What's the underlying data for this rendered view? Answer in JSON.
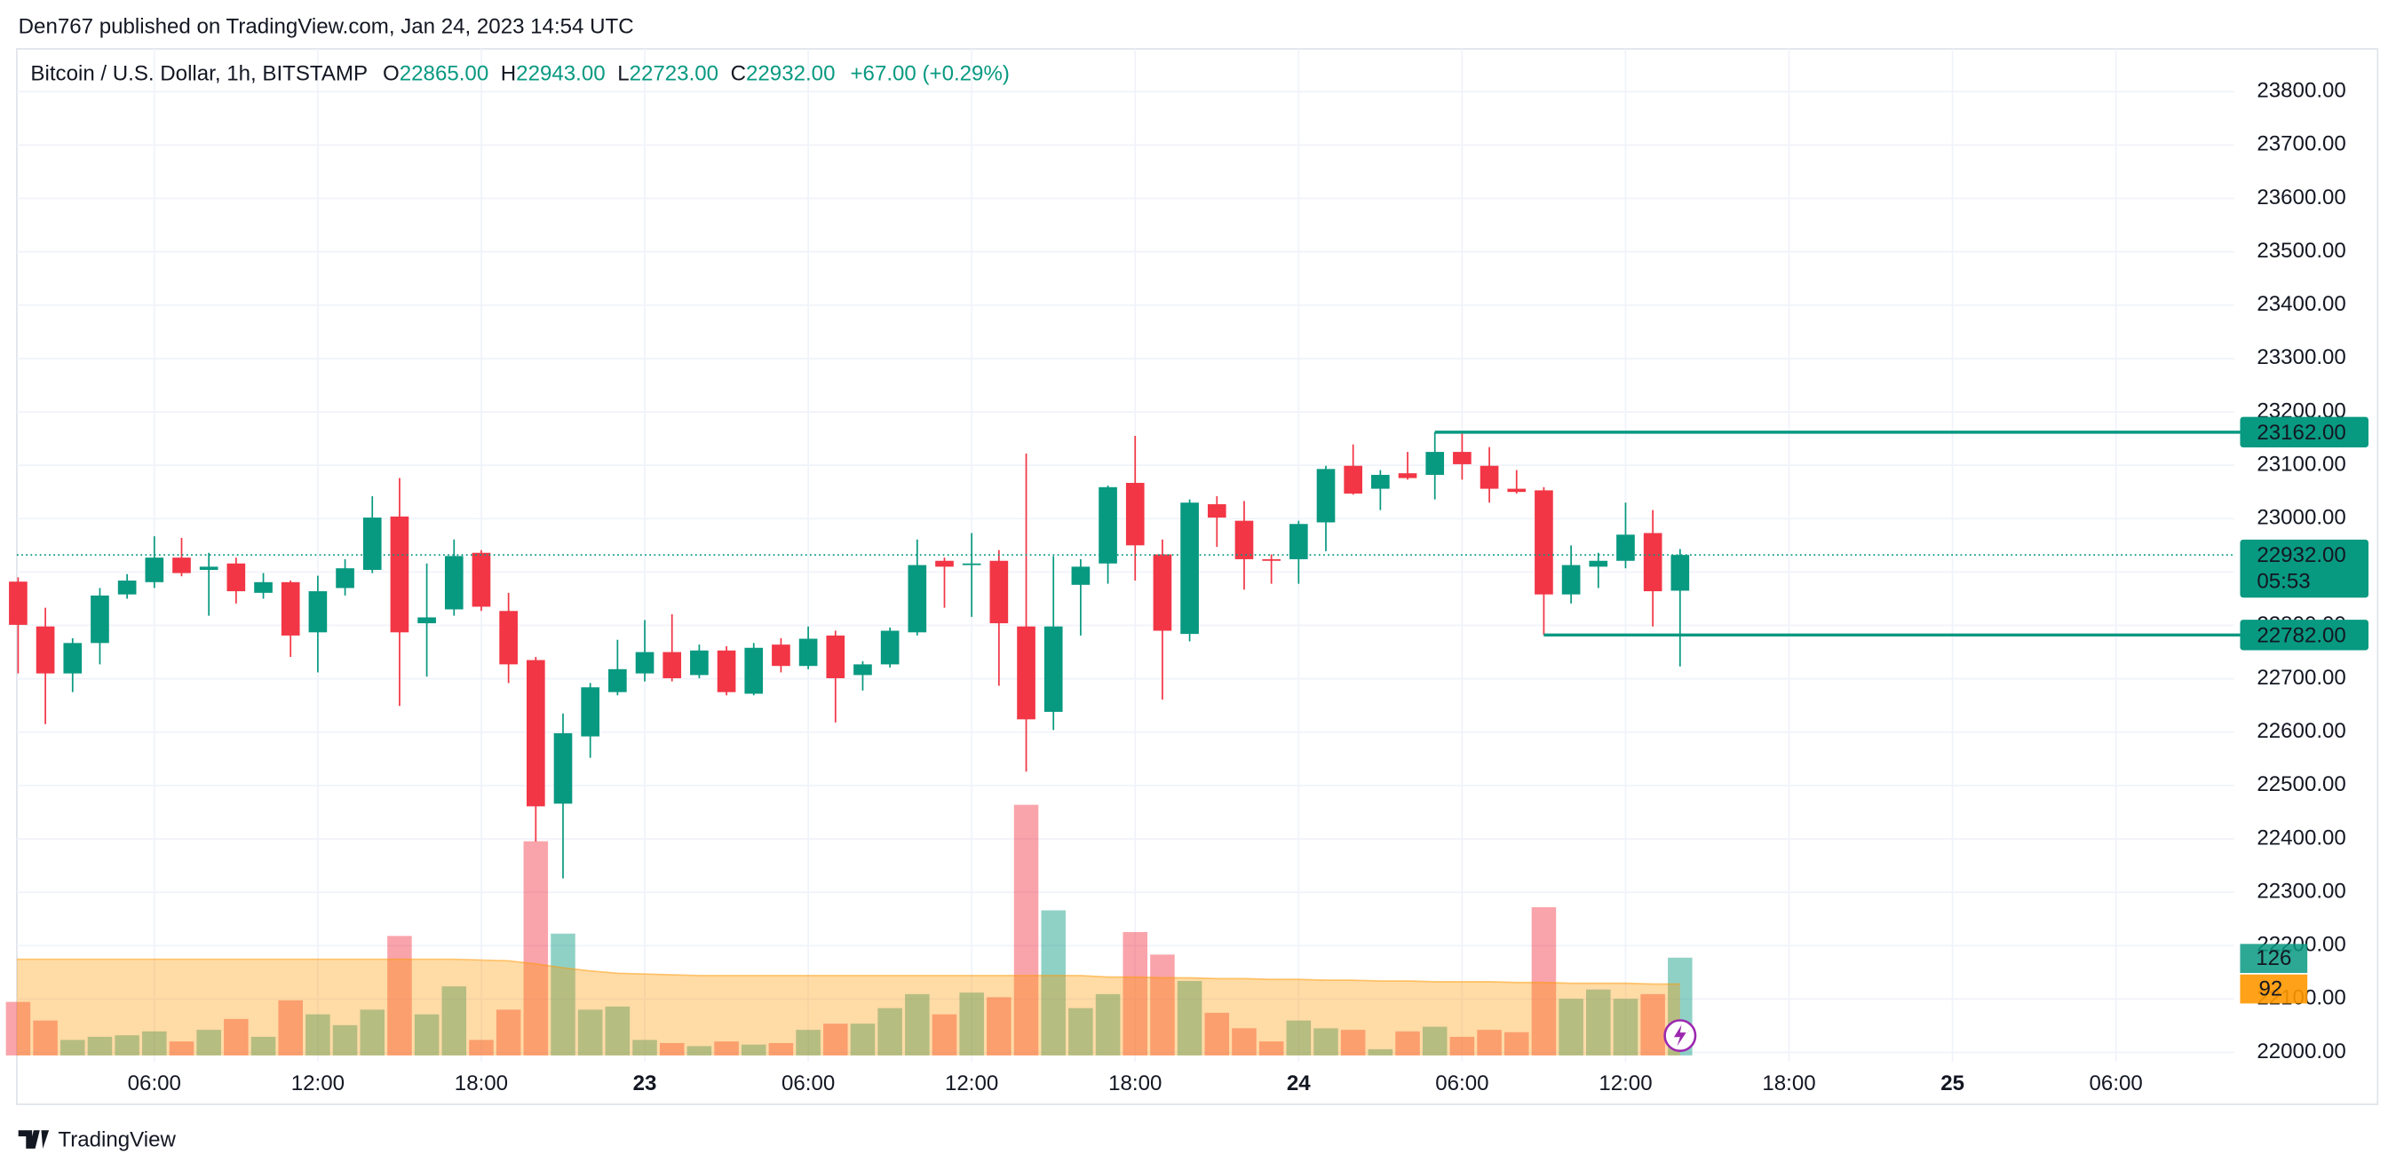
{
  "header": {
    "text": "Den767 published on TradingView.com, Jan 24, 2023 14:54 UTC"
  },
  "footer": {
    "brand": "TradingView"
  },
  "chart_data": {
    "type": "candlestick",
    "legend": {
      "symbol": "Bitcoin / U.S. Dollar, 1h, BITSTAMP",
      "ohlc": [
        {
          "key": "O",
          "value": "22865.00"
        },
        {
          "key": "H",
          "value": "22943.00"
        },
        {
          "key": "L",
          "value": "22723.00"
        },
        {
          "key": "C",
          "value": "22932.00"
        }
      ],
      "change": "+67.00 (+0.29%)"
    },
    "categories": [
      null,
      null,
      null,
      null,
      null,
      "06:00",
      null,
      null,
      null,
      null,
      null,
      "12:00",
      null,
      null,
      null,
      null,
      null,
      "18:00",
      null,
      null,
      null,
      null,
      null,
      "23",
      null,
      null,
      null,
      null,
      null,
      "06:00",
      null,
      null,
      null,
      null,
      null,
      "12:00",
      null,
      null,
      null,
      null,
      null,
      "18:00",
      null,
      null,
      null,
      null,
      null,
      "24",
      null,
      null,
      null,
      null,
      null,
      "06:00",
      null,
      null,
      null,
      null,
      null,
      "12:00",
      null,
      null
    ],
    "xticks_after": [
      "18:00",
      "25",
      "06:00"
    ],
    "open": [
      22882,
      22798,
      22710,
      22767,
      22858,
      22881,
      22927,
      22904,
      22916,
      22861,
      22881,
      22787,
      22870,
      22904,
      23004,
      22804,
      22830,
      22936,
      22827,
      22735,
      22466,
      22592,
      22675,
      22710,
      22750,
      22707,
      22753,
      22672,
      22764,
      22724,
      22781,
      22707,
      22727,
      22787,
      22921,
      22913,
      22921,
      22798,
      22638,
      22876,
      22916,
      23067,
      22933,
      22784,
      23027,
      22996,
      22924,
      22924,
      22993,
      23099,
      23056,
      23085,
      23082,
      23125,
      23099,
      23056,
      23053,
      22858,
      22910,
      22921,
      22973,
      22865
    ],
    "high": [
      22890,
      22833,
      22776,
      22870,
      22896,
      22967,
      22964,
      22936,
      22927,
      22898,
      22884,
      22893,
      22924,
      23042,
      23076,
      22916,
      22961,
      22941,
      22861,
      22741,
      22635,
      22692,
      22773,
      22810,
      22821,
      22764,
      22761,
      22767,
      22776,
      22798,
      22790,
      22733,
      22796,
      22961,
      22927,
      22973,
      22941,
      23122,
      22930,
      22924,
      23062,
      23155,
      22961,
      23036,
      23042,
      23033,
      22933,
      22996,
      23099,
      23139,
      23091,
      23125,
      23162,
      23159,
      23134,
      23091,
      23059,
      22950,
      22936,
      23030,
      23016,
      22943
    ],
    "low": [
      22710,
      22615,
      22675,
      22727,
      22850,
      22870,
      22892,
      22818,
      22841,
      22850,
      22741,
      22712,
      22856,
      22898,
      22649,
      22704,
      22818,
      22827,
      22692,
      22395,
      22326,
      22552,
      22669,
      22695,
      22695,
      22701,
      22669,
      22669,
      22712,
      22718,
      22618,
      22678,
      22721,
      22781,
      22833,
      22816,
      22687,
      22526,
      22604,
      22781,
      22878,
      22884,
      22661,
      22770,
      22947,
      22867,
      22878,
      22878,
      22939,
      23045,
      23016,
      23073,
      23036,
      23073,
      23030,
      23047,
      22782,
      22841,
      22870,
      22907,
      22798,
      22723
    ],
    "close": [
      22801,
      22710,
      22767,
      22856,
      22884,
      22927,
      22898,
      22910,
      22864,
      22881,
      22781,
      22864,
      22907,
      23002,
      22787,
      22815,
      22930,
      22835,
      22727,
      22461,
      22598,
      22684,
      22718,
      22750,
      22701,
      22753,
      22675,
      22758,
      22724,
      22775,
      22701,
      22727,
      22790,
      22913,
      22910,
      22916,
      22804,
      22624,
      22798,
      22910,
      23059,
      22950,
      22790,
      23030,
      23002,
      22924,
      22921,
      22990,
      23093,
      23047,
      23082,
      23076,
      23125,
      23102,
      23056,
      23050,
      22858,
      22913,
      22921,
      22970,
      22864,
      22932
    ],
    "volume": [
      69,
      45,
      20,
      24,
      26,
      31,
      18,
      33,
      47,
      24,
      71,
      53,
      39,
      59,
      154,
      53,
      89,
      20,
      59,
      276,
      157,
      59,
      63,
      20,
      16,
      12,
      18,
      14,
      16,
      33,
      41,
      41,
      61,
      79,
      53,
      81,
      75,
      323,
      187,
      61,
      79,
      159,
      130,
      96,
      55,
      35,
      18,
      45,
      35,
      33,
      8,
      31,
      37,
      24,
      33,
      30,
      191,
      73,
      85,
      73,
      79,
      126
    ],
    "volume_ma": [
      124,
      124,
      124,
      124,
      124,
      124,
      124,
      124,
      124,
      124,
      124,
      124,
      124,
      124,
      124,
      124,
      124,
      123,
      122,
      118,
      113,
      109,
      106,
      105,
      104,
      103,
      103,
      103,
      103,
      103,
      103,
      103,
      103,
      103,
      103,
      103,
      103,
      103,
      103,
      103,
      101,
      101,
      100,
      100,
      99,
      99,
      98,
      98,
      97,
      97,
      96,
      96,
      95,
      95,
      95,
      94,
      94,
      93,
      93,
      93,
      92,
      92
    ],
    "ylim": [
      22000,
      23800
    ],
    "yticks": [
      {
        "value": 22000,
        "label": "22000.00"
      },
      {
        "value": 22100,
        "label": "22100.00"
      },
      {
        "value": 22200,
        "label": "22200.00"
      },
      {
        "value": 22300,
        "label": "22300.00"
      },
      {
        "value": 22400,
        "label": "22400.00"
      },
      {
        "value": 22500,
        "label": "22500.00"
      },
      {
        "value": 22600,
        "label": "22600.00"
      },
      {
        "value": 22700,
        "label": "22700.00"
      },
      {
        "value": 22800,
        "label": "22800.00"
      },
      {
        "value": 22900,
        "label": "22900.00"
      },
      {
        "value": 23000,
        "label": "23000.00"
      },
      {
        "value": 23100,
        "label": "23100.00"
      },
      {
        "value": 23200,
        "label": "23200.00"
      },
      {
        "value": 23300,
        "label": "23300.00"
      },
      {
        "value": 23400,
        "label": "23400.00"
      },
      {
        "value": 23500,
        "label": "23500.00"
      },
      {
        "value": 23600,
        "label": "23600.00"
      },
      {
        "value": 23700,
        "label": "23700.00"
      },
      {
        "value": 23800,
        "label": "23800.00"
      }
    ],
    "levels": [
      {
        "value": 23162,
        "label": "23162.00"
      },
      {
        "value": 22782,
        "label": "22782.00"
      }
    ],
    "last_price": {
      "value": 22932,
      "label": "22932.00",
      "countdown": "05:53"
    },
    "grid": true,
    "up_color": "#089981",
    "down_color": "#f23645",
    "ma_color": "#ff9800"
  }
}
